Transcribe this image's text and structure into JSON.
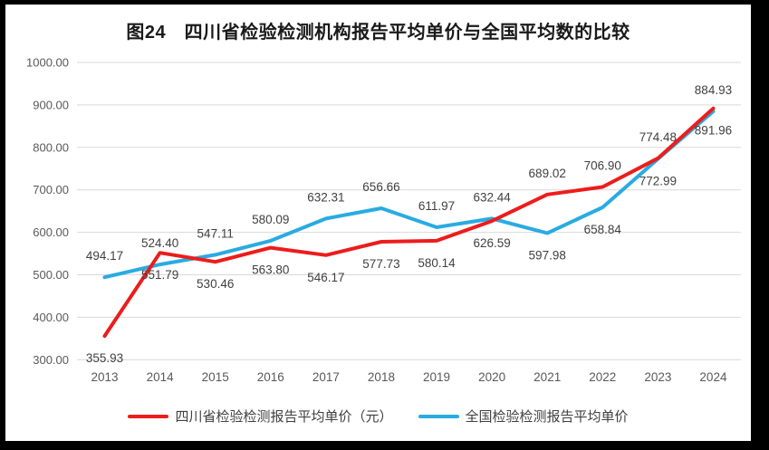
{
  "title": "图24　四川省检验检测机构报告平均单价与全国平均数的比较",
  "chart_data": {
    "type": "line",
    "title": "图24　四川省检验检测机构报告平均单价与全国平均数的比较",
    "categories": [
      "2013",
      "2014",
      "2015",
      "2016",
      "2017",
      "2018",
      "2019",
      "2020",
      "2021",
      "2022",
      "2023",
      "2024"
    ],
    "series": [
      {
        "name": "四川省检验检测报告平均单价（元）",
        "color": "#ed1c1c",
        "values": [
          355.93,
          551.79,
          530.46,
          563.8,
          546.17,
          577.73,
          580.14,
          626.59,
          689.02,
          706.9,
          774.48,
          891.96
        ],
        "label_positions": [
          "below",
          "below",
          "below",
          "below",
          "below",
          "below",
          "below",
          "below",
          "above",
          "above",
          "above",
          "below"
        ]
      },
      {
        "name": "全国检验检测报告平均单价",
        "color": "#29abe2",
        "values": [
          494.17,
          524.4,
          547.11,
          580.09,
          632.31,
          656.66,
          611.97,
          632.44,
          597.98,
          658.84,
          772.99,
          884.93
        ],
        "label_positions": [
          "above",
          "above",
          "above",
          "above",
          "above",
          "above",
          "above",
          "above",
          "below",
          "below",
          "below",
          "above"
        ]
      }
    ],
    "ylim": [
      300,
      1000
    ],
    "ytick_step": 100,
    "ytick_decimals": 2,
    "grid": true,
    "legend_position": "bottom"
  },
  "colors": {
    "gridline": "#d9d9d9",
    "axis_text": "#595959",
    "data_label": "#404040",
    "title_text": "#1a1a1a",
    "background": "#ffffff",
    "frame": "#000000"
  }
}
